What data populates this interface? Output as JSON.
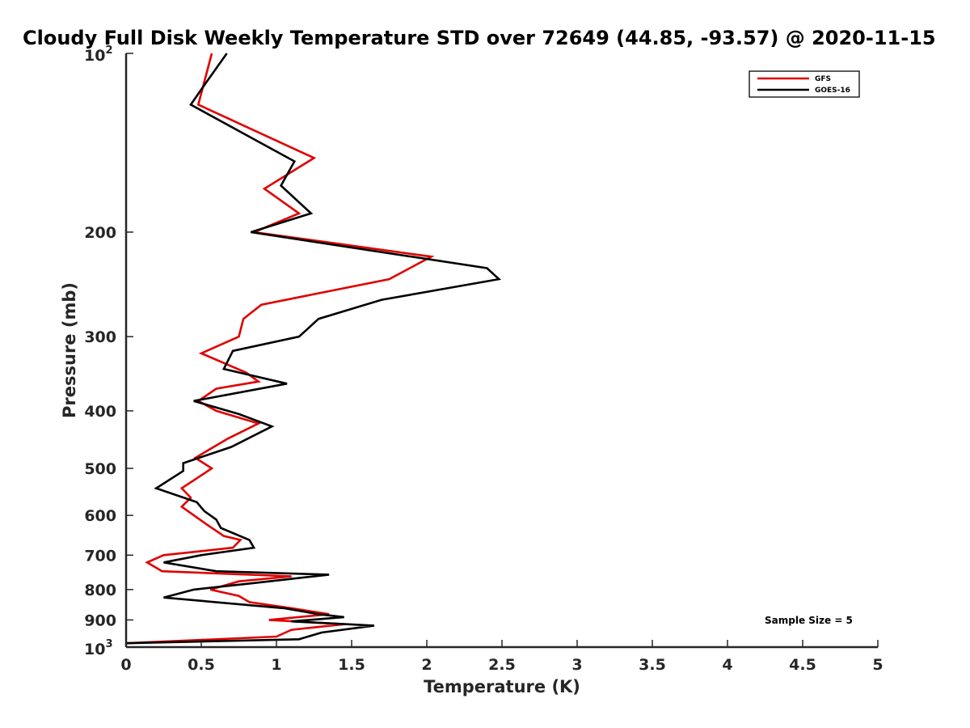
{
  "chart_data": {
    "type": "line",
    "title": "Cloudy Full Disk Weekly Temperature STD over 72649 (44.85, -93.57) @ 2020-11-15",
    "xlabel": "Temperature (K)",
    "ylabel": "Pressure (mb)",
    "xlim": [
      0,
      5
    ],
    "ylim": [
      100,
      1000
    ],
    "y_scale": "log",
    "y_reversed": true,
    "x_ticks": [
      "0",
      "0.5",
      "1",
      "1.5",
      "2",
      "2.5",
      "3",
      "3.5",
      "4",
      "4.5",
      "5"
    ],
    "y_tick_values": [
      200,
      300,
      400,
      500,
      600,
      700,
      800,
      900
    ],
    "y_tick_labels": [
      "200",
      "300",
      "400",
      "500",
      "600",
      "700",
      "800",
      "900"
    ],
    "y_end_labels": {
      "top_base": "10",
      "top_exp": "2",
      "bottom_base": "10",
      "bottom_exp": "3"
    },
    "grid": false,
    "legend": {
      "placement": "top-right"
    },
    "annotation": "Sample Size = 5",
    "series": [
      {
        "name": "GFS",
        "color": "#e00000",
        "points": [
          [
            0.57,
            100
          ],
          [
            0.48,
            122
          ],
          [
            1.25,
            150
          ],
          [
            0.92,
            169
          ],
          [
            1.15,
            186
          ],
          [
            0.85,
            200
          ],
          [
            2.03,
            220
          ],
          [
            1.75,
            240
          ],
          [
            0.9,
            265
          ],
          [
            0.78,
            280
          ],
          [
            0.75,
            300
          ],
          [
            0.5,
            320
          ],
          [
            0.8,
            345
          ],
          [
            0.88,
            357
          ],
          [
            0.6,
            367
          ],
          [
            0.48,
            385
          ],
          [
            0.6,
            400
          ],
          [
            0.88,
            420
          ],
          [
            0.68,
            445
          ],
          [
            0.46,
            480
          ],
          [
            0.57,
            500
          ],
          [
            0.37,
            540
          ],
          [
            0.43,
            560
          ],
          [
            0.37,
            580
          ],
          [
            0.53,
            620
          ],
          [
            0.65,
            650
          ],
          [
            0.76,
            660
          ],
          [
            0.71,
            680
          ],
          [
            0.25,
            700
          ],
          [
            0.14,
            720
          ],
          [
            0.24,
            745
          ],
          [
            1.1,
            760
          ],
          [
            0.75,
            775
          ],
          [
            0.56,
            800
          ],
          [
            0.75,
            820
          ],
          [
            0.82,
            840
          ],
          [
            1.1,
            860
          ],
          [
            1.35,
            880
          ],
          [
            0.95,
            900
          ],
          [
            1.45,
            915
          ],
          [
            1.1,
            935
          ],
          [
            1.0,
            960
          ],
          [
            0.0,
            985
          ]
        ]
      },
      {
        "name": "GOES-16",
        "color": "#000000",
        "points": [
          [
            0.67,
            100
          ],
          [
            0.5,
            115
          ],
          [
            0.43,
            122
          ],
          [
            1.12,
            152
          ],
          [
            1.03,
            167
          ],
          [
            1.23,
            186
          ],
          [
            0.83,
            200
          ],
          [
            2.4,
            230
          ],
          [
            2.48,
            240
          ],
          [
            1.7,
            260
          ],
          [
            1.28,
            280
          ],
          [
            1.15,
            300
          ],
          [
            0.71,
            317
          ],
          [
            0.65,
            340
          ],
          [
            1.07,
            360
          ],
          [
            0.45,
            385
          ],
          [
            0.75,
            405
          ],
          [
            0.97,
            425
          ],
          [
            0.7,
            460
          ],
          [
            0.38,
            490
          ],
          [
            0.38,
            505
          ],
          [
            0.2,
            540
          ],
          [
            0.47,
            570
          ],
          [
            0.52,
            590
          ],
          [
            0.6,
            610
          ],
          [
            0.63,
            630
          ],
          [
            0.82,
            660
          ],
          [
            0.85,
            680
          ],
          [
            0.5,
            700
          ],
          [
            0.25,
            720
          ],
          [
            0.6,
            745
          ],
          [
            1.35,
            755
          ],
          [
            0.85,
            780
          ],
          [
            0.45,
            800
          ],
          [
            0.25,
            825
          ],
          [
            1.05,
            860
          ],
          [
            1.28,
            880
          ],
          [
            1.45,
            890
          ],
          [
            1.1,
            905
          ],
          [
            1.65,
            920
          ],
          [
            1.3,
            945
          ],
          [
            1.15,
            970
          ],
          [
            0.0,
            985
          ]
        ]
      }
    ]
  }
}
